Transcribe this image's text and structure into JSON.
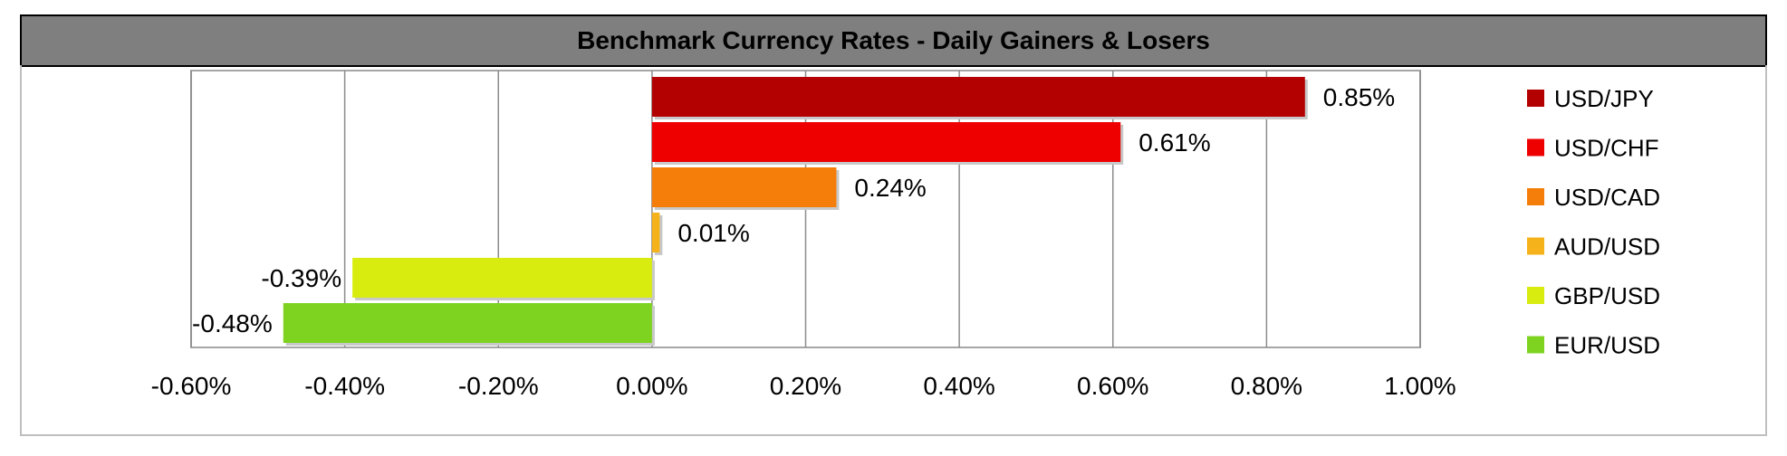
{
  "chart_data": {
    "type": "bar",
    "orientation": "horizontal",
    "title": "Benchmark Currency Rates - Daily Gainers & Losers",
    "categories": [
      "USD/JPY",
      "USD/CHF",
      "USD/CAD",
      "AUD/USD",
      "GBP/USD",
      "EUR/USD"
    ],
    "values": [
      0.85,
      0.61,
      0.24,
      0.01,
      -0.39,
      -0.48
    ],
    "value_labels": [
      "0.85%",
      "0.61%",
      "0.24%",
      "0.01%",
      "-0.39%",
      "-0.48%"
    ],
    "colors": [
      "#b30000",
      "#ee0000",
      "#f57e0a",
      "#f5b21a",
      "#d8ec10",
      "#7ed321"
    ],
    "xlim": [
      -0.6,
      1.0
    ],
    "x_ticks": [
      -0.6,
      -0.4,
      -0.2,
      0.0,
      0.2,
      0.4,
      0.6,
      0.8,
      1.0
    ],
    "x_tick_labels": [
      "-0.60%",
      "-0.40%",
      "-0.20%",
      "0.00%",
      "0.20%",
      "0.40%",
      "0.60%",
      "0.80%",
      "1.00%"
    ],
    "grid": "vertical",
    "legend_position": "right",
    "legend": [
      "USD/JPY",
      "USD/CHF",
      "USD/CAD",
      "AUD/USD",
      "GBP/USD",
      "EUR/USD"
    ],
    "xlabel": "",
    "ylabel": ""
  }
}
